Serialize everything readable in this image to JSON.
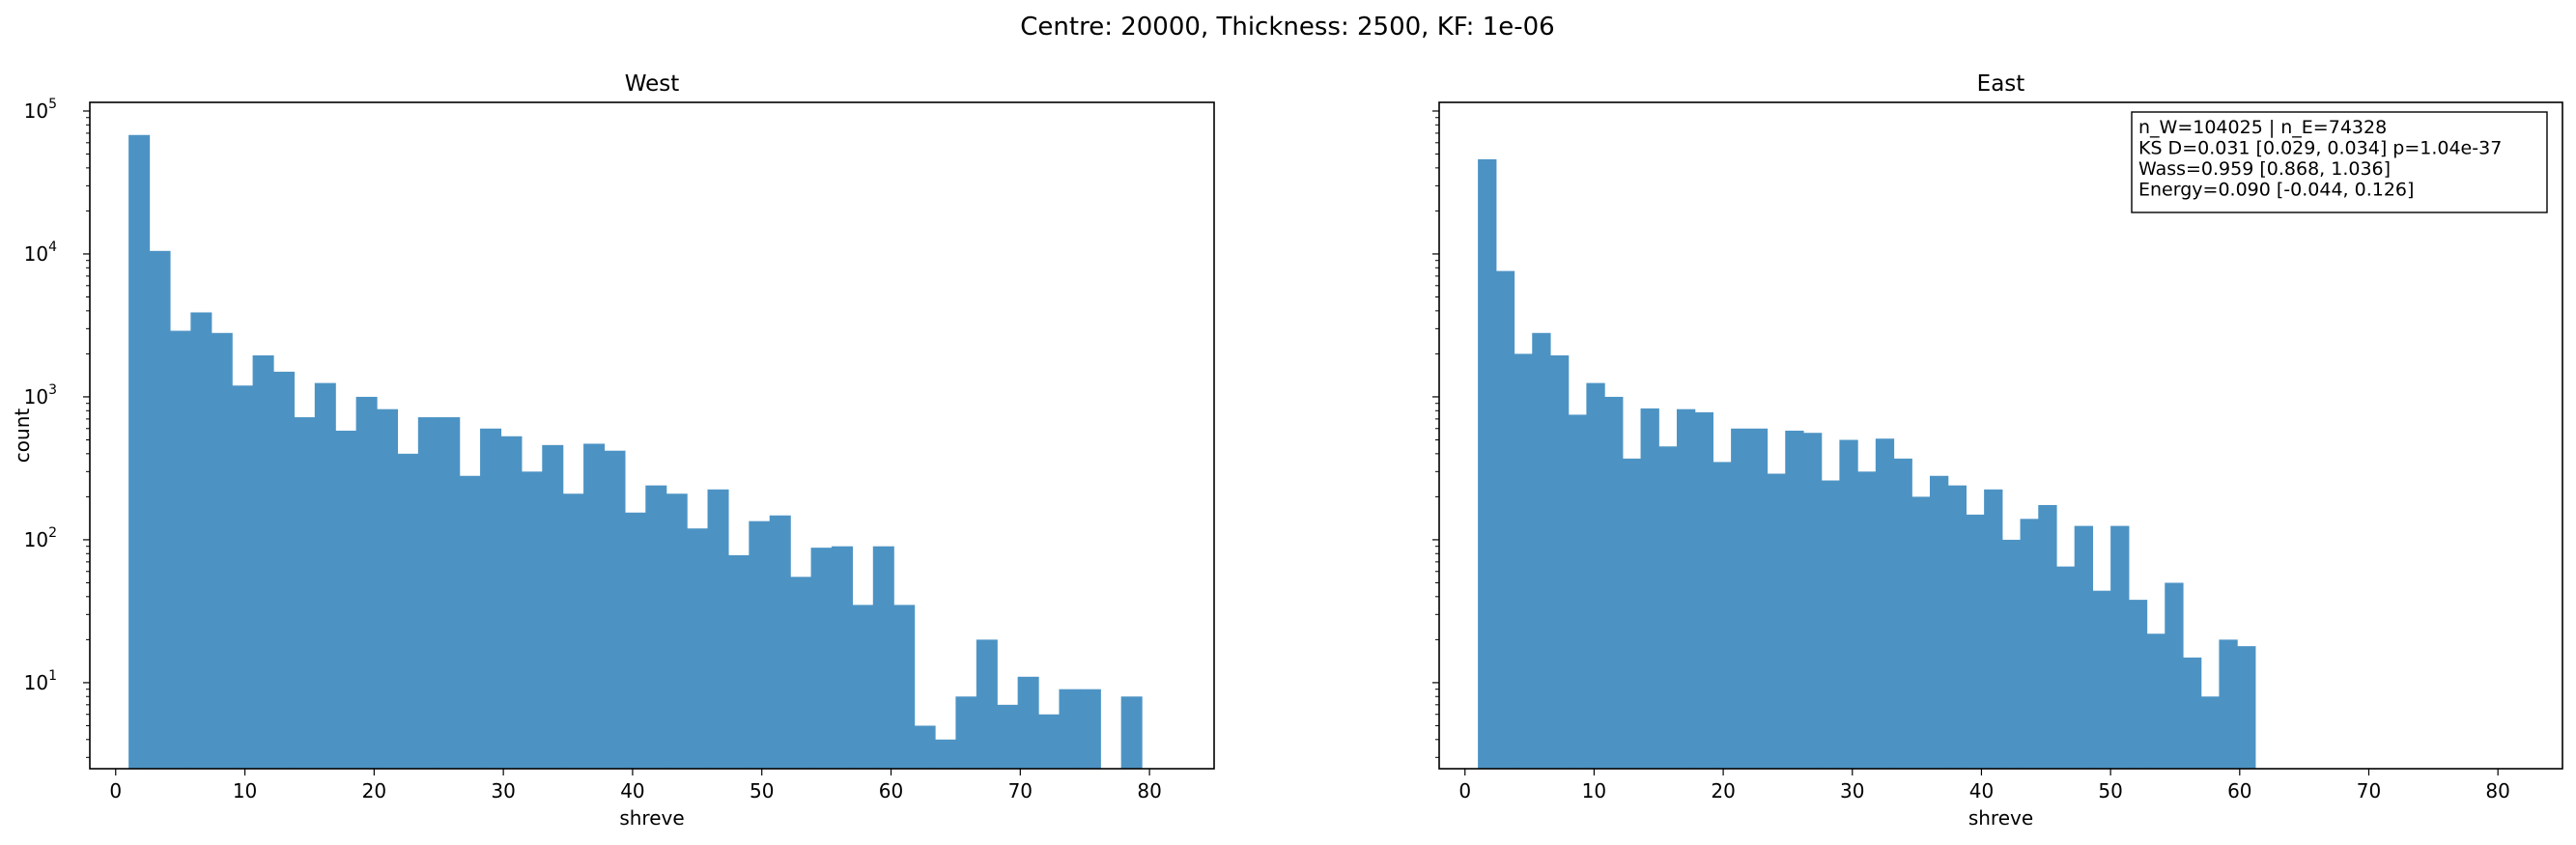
{
  "figure": {
    "suptitle": "Centre: 20000, Thickness: 2500, KF: 1e-06"
  },
  "colors": {
    "bar": "#4c93c4",
    "axis": "#000000",
    "background": "#ffffff"
  },
  "chart_data": [
    {
      "type": "bar",
      "title": "West",
      "xlabel": "shreve",
      "ylabel": "count",
      "yscale": "log",
      "xlim": [
        -2.0,
        85.0
      ],
      "ylim": [
        2.5,
        115000
      ],
      "xticks": [
        0,
        10,
        20,
        30,
        40,
        50,
        60,
        70,
        80
      ],
      "yticks": [
        {
          "base": "10",
          "exp": "1",
          "value": 10
        },
        {
          "base": "10",
          "exp": "2",
          "value": 100
        },
        {
          "base": "10",
          "exp": "3",
          "value": 1000
        },
        {
          "base": "10",
          "exp": "4",
          "value": 10000
        },
        {
          "base": "10",
          "exp": "5",
          "value": 100000
        }
      ],
      "bin_start": 1.0,
      "bin_width": 1.6,
      "counts": [
        68000,
        10500,
        2900,
        3900,
        2800,
        1200,
        1950,
        1500,
        720,
        1250,
        580,
        1000,
        820,
        400,
        720,
        720,
        280,
        600,
        530,
        300,
        460,
        210,
        470,
        420,
        155,
        240,
        210,
        120,
        225,
        78,
        135,
        148,
        55,
        88,
        90,
        35,
        90,
        35,
        5,
        4,
        8,
        20,
        7,
        11,
        6,
        9,
        9,
        0,
        8
      ]
    },
    {
      "type": "bar",
      "title": "East",
      "xlabel": "shreve",
      "ylabel": "",
      "yscale": "log",
      "xlim": [
        -2.0,
        85.0
      ],
      "ylim": [
        2.5,
        115000
      ],
      "xticks": [
        0,
        10,
        20,
        30,
        40,
        50,
        60,
        70,
        80
      ],
      "yticks": [],
      "bin_start": 1.0,
      "bin_width": 1.4,
      "counts": [
        46000,
        7600,
        2000,
        2800,
        1950,
        750,
        1250,
        1000,
        370,
        830,
        450,
        820,
        780,
        350,
        600,
        600,
        290,
        580,
        560,
        260,
        500,
        300,
        510,
        370,
        200,
        280,
        240,
        150,
        225,
        100,
        140,
        175,
        65,
        125,
        44,
        125,
        38,
        22,
        50,
        15,
        8,
        20,
        18
      ],
      "annotation": [
        "n_W=104025 | n_E=74328",
        "KS D=0.031 [0.029, 0.034]  p=1.04e-37",
        "Wass=0.959 [0.868, 1.036]",
        "Energy=0.090 [-0.044, 0.126]"
      ]
    }
  ]
}
